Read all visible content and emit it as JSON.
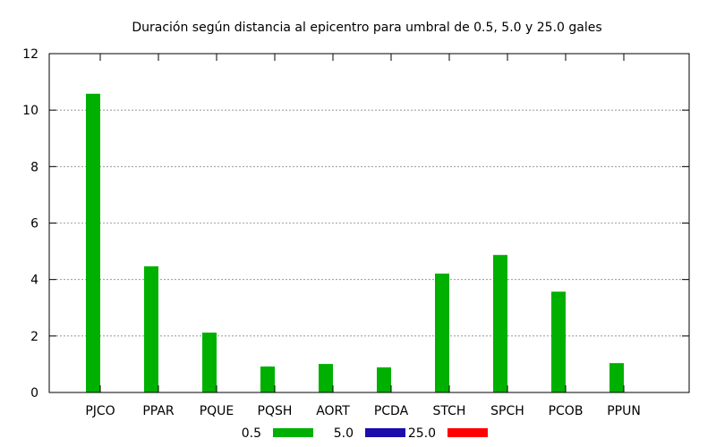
{
  "chart_data": {
    "type": "bar",
    "title": "Duración según distancia al epicentro para umbral de 0.5, 5.0 y 25.0 gales",
    "xlabel": "",
    "ylabel": "",
    "categories": [
      "PJCO",
      "PPAR",
      "PQUE",
      "PQSH",
      "AORT",
      "PCDA",
      "STCH",
      "SPCH",
      "PCOB",
      "PPUN"
    ],
    "series": [
      {
        "name": "0.5",
        "color": "#00b000",
        "values": [
          10.58,
          4.47,
          2.12,
          0.92,
          1.01,
          0.89,
          4.21,
          4.87,
          3.57,
          1.04
        ]
      },
      {
        "name": "5.0",
        "color": "#1a0dab",
        "values": [
          0,
          0,
          0,
          0,
          0,
          0,
          0,
          0,
          0,
          0
        ]
      },
      {
        "name": "25.0",
        "color": "#ff0000",
        "values": [
          0,
          0,
          0,
          0,
          0,
          0,
          0,
          0,
          0,
          0
        ]
      }
    ],
    "ylim": [
      0,
      12
    ],
    "yticks": [
      0,
      2,
      4,
      6,
      8,
      10,
      12
    ],
    "grid": true,
    "legend_position": "bottom"
  }
}
